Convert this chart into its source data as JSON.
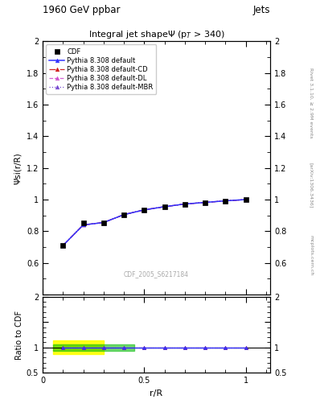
{
  "title_top": "1960 GeV ppbar",
  "title_top_right": "Jets",
  "title_main": "Integral jet shapeΨ (p$_{T}$ > 340)",
  "xlabel": "r/R",
  "ylabel_main": "Ψsi(r/R)",
  "ylabel_ratio": "Ratio to CDF",
  "watermark": "CDF_2005_S6217184",
  "rivet_label": "Rivet 3.1.10, ≥ 2.9M events",
  "arxiv_label": "[arXiv:1306.3436]",
  "mcplots_label": "mcplots.cern.ch",
  "x_data": [
    0.1,
    0.2,
    0.3,
    0.4,
    0.5,
    0.6,
    0.7,
    0.8,
    0.9,
    1.0
  ],
  "cdf_y": [
    0.71,
    0.855,
    0.855,
    0.905,
    0.935,
    0.955,
    0.972,
    0.982,
    0.992,
    1.0
  ],
  "pythia_default_y": [
    0.71,
    0.84,
    0.855,
    0.905,
    0.935,
    0.955,
    0.972,
    0.982,
    0.992,
    1.0
  ],
  "pythia_cd_y": [
    0.71,
    0.84,
    0.855,
    0.905,
    0.935,
    0.955,
    0.972,
    0.982,
    0.992,
    1.0
  ],
  "pythia_dl_y": [
    0.71,
    0.84,
    0.855,
    0.905,
    0.935,
    0.955,
    0.972,
    0.982,
    0.992,
    1.0
  ],
  "pythia_mbr_y": [
    0.71,
    0.84,
    0.855,
    0.905,
    0.935,
    0.955,
    0.972,
    0.982,
    0.992,
    1.0
  ],
  "ratio_y": [
    1.0,
    1.0,
    1.0,
    1.0,
    1.0,
    1.0,
    1.0,
    1.0,
    1.0,
    1.0
  ],
  "yellow_band_xlo": 0.05,
  "yellow_band_xhi": 0.3,
  "yellow_band_ylo": 0.875,
  "yellow_band_yhi": 1.135,
  "green_band_xlo": 0.05,
  "green_band_xhi": 0.45,
  "green_band_ylo": 0.935,
  "green_band_yhi": 1.065,
  "color_default": "#3333ff",
  "color_cd": "#cc0000",
  "color_dl": "#cc44cc",
  "color_mbr": "#6633cc",
  "color_cdf": "#000000",
  "main_ylim": [
    0.4,
    2.0
  ],
  "ratio_ylim": [
    0.5,
    2.0
  ],
  "xlim": [
    0.0,
    1.12
  ]
}
